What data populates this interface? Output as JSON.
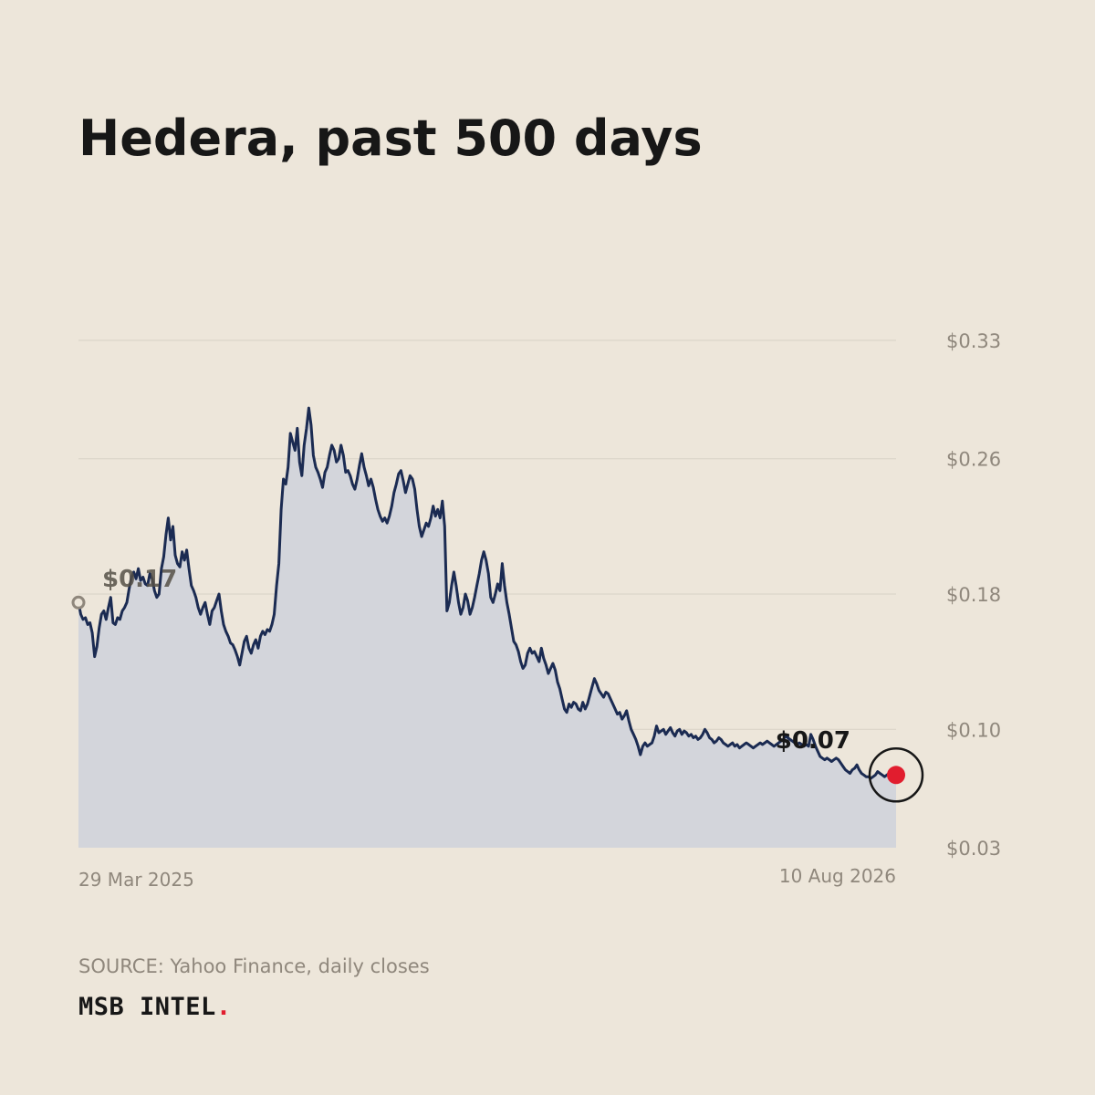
{
  "header": {
    "title": "Hedera, past 500 days"
  },
  "footer": {
    "source": "SOURCE: Yahoo Finance, daily closes",
    "brand": "MSB INTEL",
    "brand_dot": "."
  },
  "colors": {
    "background": "#ede6da",
    "line": "#1b2b52",
    "area": "#d3d5db",
    "grid": "#d8d2c6",
    "axis_text": "#8f877c",
    "accent_red": "#e11d2e",
    "start_marker": "#8f877c"
  },
  "chart_data": {
    "type": "area",
    "title": "Hedera, past 500 days",
    "xlabel": "",
    "ylabel": "",
    "x_range": [
      "2025-03-29",
      "2026-08-10"
    ],
    "x_tick_labels": [
      "29 Mar 2025",
      "10 Aug 2026"
    ],
    "y_ticks": [
      0.03,
      0.1,
      0.18,
      0.26,
      0.33
    ],
    "y_tick_labels": [
      "$0.03",
      "$0.10",
      "$0.18",
      "$0.26",
      "$0.33"
    ],
    "ylim": [
      0.03,
      0.33
    ],
    "grid": true,
    "start_label": "$0.17",
    "end_label": "$0.07",
    "series": [
      {
        "values": [
          0.175,
          0.168,
          0.165,
          0.166,
          0.162,
          0.163,
          0.157,
          0.143,
          0.149,
          0.16,
          0.168,
          0.17,
          0.165,
          0.172,
          0.178,
          0.163,
          0.162,
          0.166,
          0.165,
          0.17,
          0.172,
          0.175,
          0.183,
          0.19,
          0.193,
          0.189,
          0.195,
          0.188,
          0.19,
          0.186,
          0.185,
          0.192,
          0.189,
          0.182,
          0.178,
          0.18,
          0.195,
          0.202,
          0.215,
          0.225,
          0.212,
          0.22,
          0.203,
          0.198,
          0.196,
          0.205,
          0.2,
          0.206,
          0.195,
          0.185,
          0.182,
          0.178,
          0.172,
          0.168,
          0.172,
          0.175,
          0.168,
          0.162,
          0.17,
          0.172,
          0.176,
          0.18,
          0.17,
          0.162,
          0.158,
          0.155,
          0.151,
          0.15,
          0.147,
          0.143,
          0.138,
          0.145,
          0.152,
          0.155,
          0.148,
          0.145,
          0.15,
          0.153,
          0.148,
          0.155,
          0.158,
          0.156,
          0.159,
          0.158,
          0.162,
          0.168,
          0.185,
          0.198,
          0.23,
          0.248,
          0.245,
          0.255,
          0.275,
          0.27,
          0.265,
          0.278,
          0.258,
          0.25,
          0.268,
          0.278,
          0.29,
          0.28,
          0.262,
          0.255,
          0.252,
          0.248,
          0.243,
          0.252,
          0.255,
          0.262,
          0.268,
          0.265,
          0.258,
          0.26,
          0.268,
          0.262,
          0.252,
          0.253,
          0.25,
          0.245,
          0.242,
          0.248,
          0.256,
          0.263,
          0.255,
          0.25,
          0.244,
          0.248,
          0.243,
          0.236,
          0.23,
          0.226,
          0.223,
          0.225,
          0.222,
          0.226,
          0.232,
          0.24,
          0.245,
          0.251,
          0.253,
          0.247,
          0.24,
          0.245,
          0.25,
          0.248,
          0.242,
          0.23,
          0.22,
          0.214,
          0.218,
          0.222,
          0.22,
          0.225,
          0.232,
          0.226,
          0.23,
          0.225,
          0.235,
          0.22,
          0.17,
          0.175,
          0.185,
          0.193,
          0.185,
          0.175,
          0.168,
          0.172,
          0.18,
          0.176,
          0.168,
          0.172,
          0.178,
          0.185,
          0.192,
          0.2,
          0.205,
          0.2,
          0.192,
          0.178,
          0.175,
          0.18,
          0.186,
          0.182,
          0.198,
          0.185,
          0.175,
          0.168,
          0.16,
          0.152,
          0.15,
          0.146,
          0.14,
          0.136,
          0.138,
          0.145,
          0.148,
          0.145,
          0.146,
          0.143,
          0.14,
          0.148,
          0.142,
          0.138,
          0.133,
          0.136,
          0.139,
          0.135,
          0.128,
          0.124,
          0.118,
          0.112,
          0.11,
          0.115,
          0.113,
          0.116,
          0.115,
          0.112,
          0.111,
          0.116,
          0.112,
          0.115,
          0.12,
          0.125,
          0.13,
          0.127,
          0.123,
          0.121,
          0.119,
          0.122,
          0.121,
          0.118,
          0.115,
          0.112,
          0.109,
          0.11,
          0.106,
          0.108,
          0.111,
          0.105,
          0.1,
          0.097,
          0.094,
          0.09,
          0.085,
          0.09,
          0.092,
          0.09,
          0.091,
          0.092,
          0.096,
          0.102,
          0.098,
          0.099,
          0.1,
          0.097,
          0.099,
          0.101,
          0.098,
          0.096,
          0.099,
          0.1,
          0.097,
          0.099,
          0.098,
          0.096,
          0.097,
          0.095,
          0.096,
          0.094,
          0.095,
          0.097,
          0.1,
          0.098,
          0.095,
          0.094,
          0.092,
          0.093,
          0.095,
          0.094,
          0.092,
          0.091,
          0.09,
          0.091,
          0.092,
          0.09,
          0.091,
          0.089,
          0.09,
          0.091,
          0.092,
          0.091,
          0.09,
          0.089,
          0.09,
          0.091,
          0.092,
          0.091,
          0.092,
          0.093,
          0.092,
          0.091,
          0.09,
          0.091,
          0.092,
          0.093,
          0.094,
          0.096,
          0.095,
          0.094,
          0.093,
          0.092,
          0.091,
          0.092,
          0.091,
          0.09,
          0.091,
          0.09,
          0.097,
          0.094,
          0.09,
          0.087,
          0.084,
          0.083,
          0.082,
          0.083,
          0.082,
          0.081,
          0.082,
          0.083,
          0.082,
          0.08,
          0.078,
          0.076,
          0.075,
          0.074,
          0.076,
          0.077,
          0.079,
          0.076,
          0.074,
          0.073,
          0.072,
          0.072,
          0.071,
          0.072,
          0.073,
          0.075,
          0.074,
          0.073,
          0.072,
          0.073,
          0.074,
          0.073,
          0.072,
          0.073
        ]
      }
    ]
  }
}
